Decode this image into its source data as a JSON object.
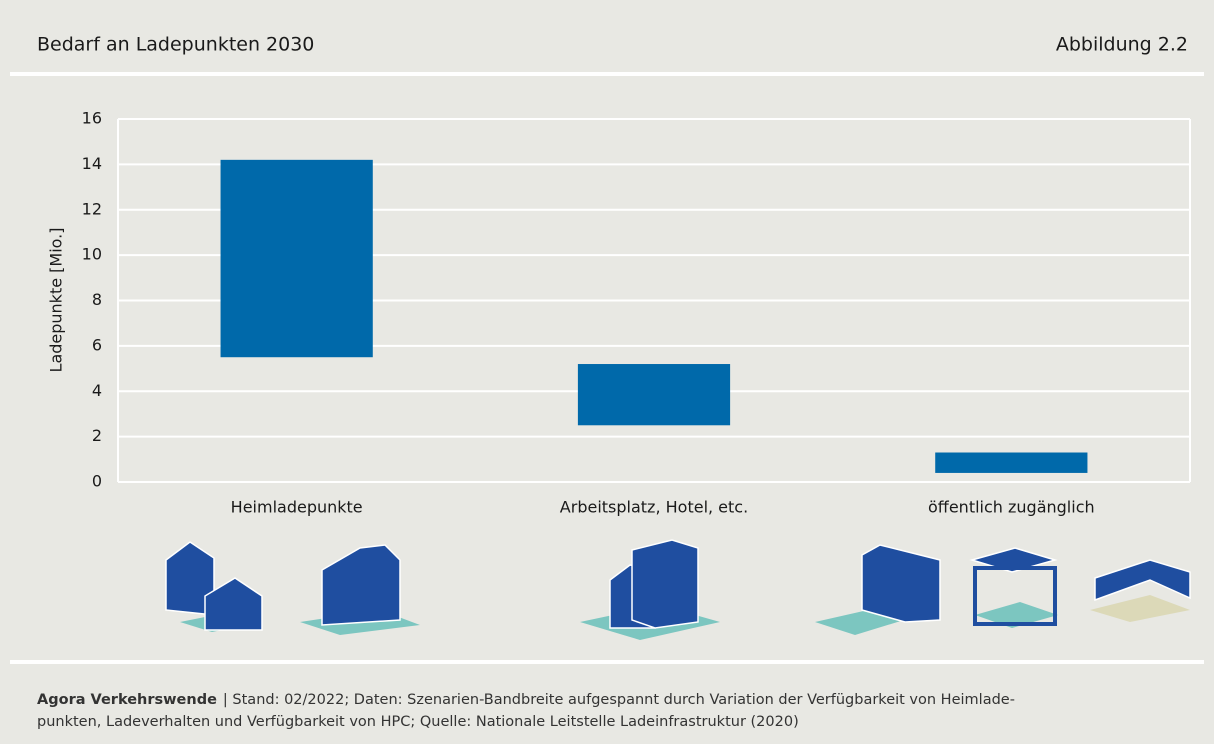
{
  "chart_data": {
    "type": "floating-bar",
    "title": "Bedarf an Ladepunkten 2030",
    "figure_label": "Abbildung 2.2",
    "y_label": "Ladepunkte [Mio.]",
    "categories": [
      "Heimladepunkte",
      "Arbeitsplatz, Hotel, etc.",
      "öffentlich zugänglich"
    ],
    "low": [
      5.5,
      2.5,
      0.4
    ],
    "high": [
      14.2,
      5.2,
      1.3
    ],
    "color": "#0069aa",
    "ylim": [
      0,
      16
    ],
    "yticks": [
      0,
      2,
      4,
      6,
      8,
      10,
      12,
      14,
      16
    ],
    "grid": true,
    "source_org": "Agora Verkehrswende",
    "source_lines": [
      "| Stand: 02/2022; Daten: Szenarien-Bandbreite aufgespannt durch Variation der Verfügbarkeit von Heimlade-",
      "punkten, Ladeverhalten und Verfügbarkeit von HPC; Quelle: Nationale Leitstelle Ladeinfrastruktur (2020)"
    ]
  }
}
